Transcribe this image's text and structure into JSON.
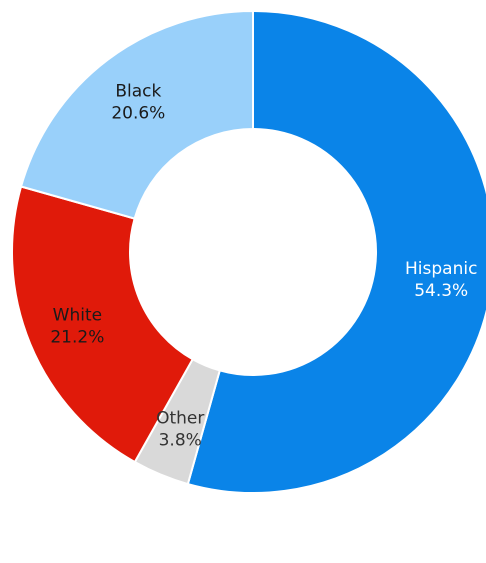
{
  "chart_data": {
    "type": "pie",
    "donut": true,
    "title": "",
    "slices": [
      {
        "category": "Hispanic",
        "value_label": "54.3%",
        "value": 54.3,
        "color": "#0A84E8",
        "label_color": "#ffffff"
      },
      {
        "category": "Other",
        "value_label": "3.8%",
        "value": 3.8,
        "color": "#D9D9D9",
        "label_color": "#333333"
      },
      {
        "category": "White",
        "value_label": "21.2%",
        "value": 21.2,
        "color": "#E01A0A",
        "label_color": "#1a1a1a"
      },
      {
        "category": "Black",
        "value_label": "20.6%",
        "value": 20.6,
        "color": "#99D0FA",
        "label_color": "#1a1a1a"
      }
    ],
    "legend": "none",
    "start": "top",
    "direction": "clockwise"
  }
}
